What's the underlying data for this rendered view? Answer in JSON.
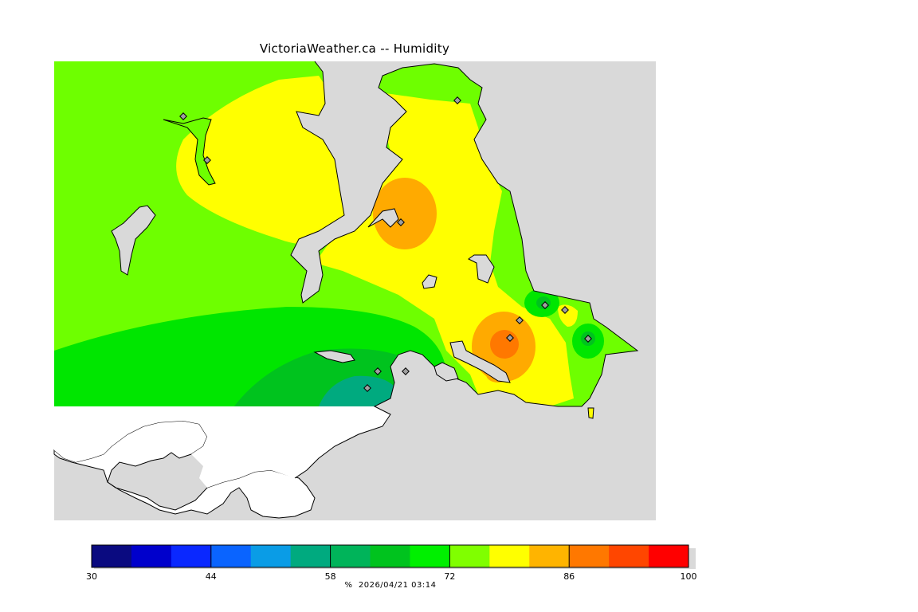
{
  "title": "VictoriaWeather.ca -- Humidity",
  "legend": {
    "unit": "%",
    "timestamp": "2026/04/21 03:14",
    "colors": [
      "#0a0a80",
      "#0000cc",
      "#0a28ff",
      "#0a64ff",
      "#0a9ce6",
      "#00aa7f",
      "#00b45a",
      "#00c31e",
      "#00f000",
      "#80ff00",
      "#ffff00",
      "#ffb400",
      "#ff7800",
      "#ff4600",
      "#ff0000"
    ],
    "tick_labels": [
      "30",
      "44",
      "58",
      "72",
      "86",
      "100"
    ]
  },
  "map": {
    "colors": {
      "background": "#d9d9d9",
      "land_green_light": "#6eff00",
      "land_green": "#00e600",
      "land_green_dark": "#00c31e",
      "land_teal": "#00aa7f",
      "yellow": "#ffff00",
      "orange": "#ffaa00",
      "dark_orange": "#ff7800",
      "coast": "#000000",
      "uncovered_land": "#ffffff"
    },
    "station_icon": "diamond-marker-icon",
    "station_count": 12
  }
}
